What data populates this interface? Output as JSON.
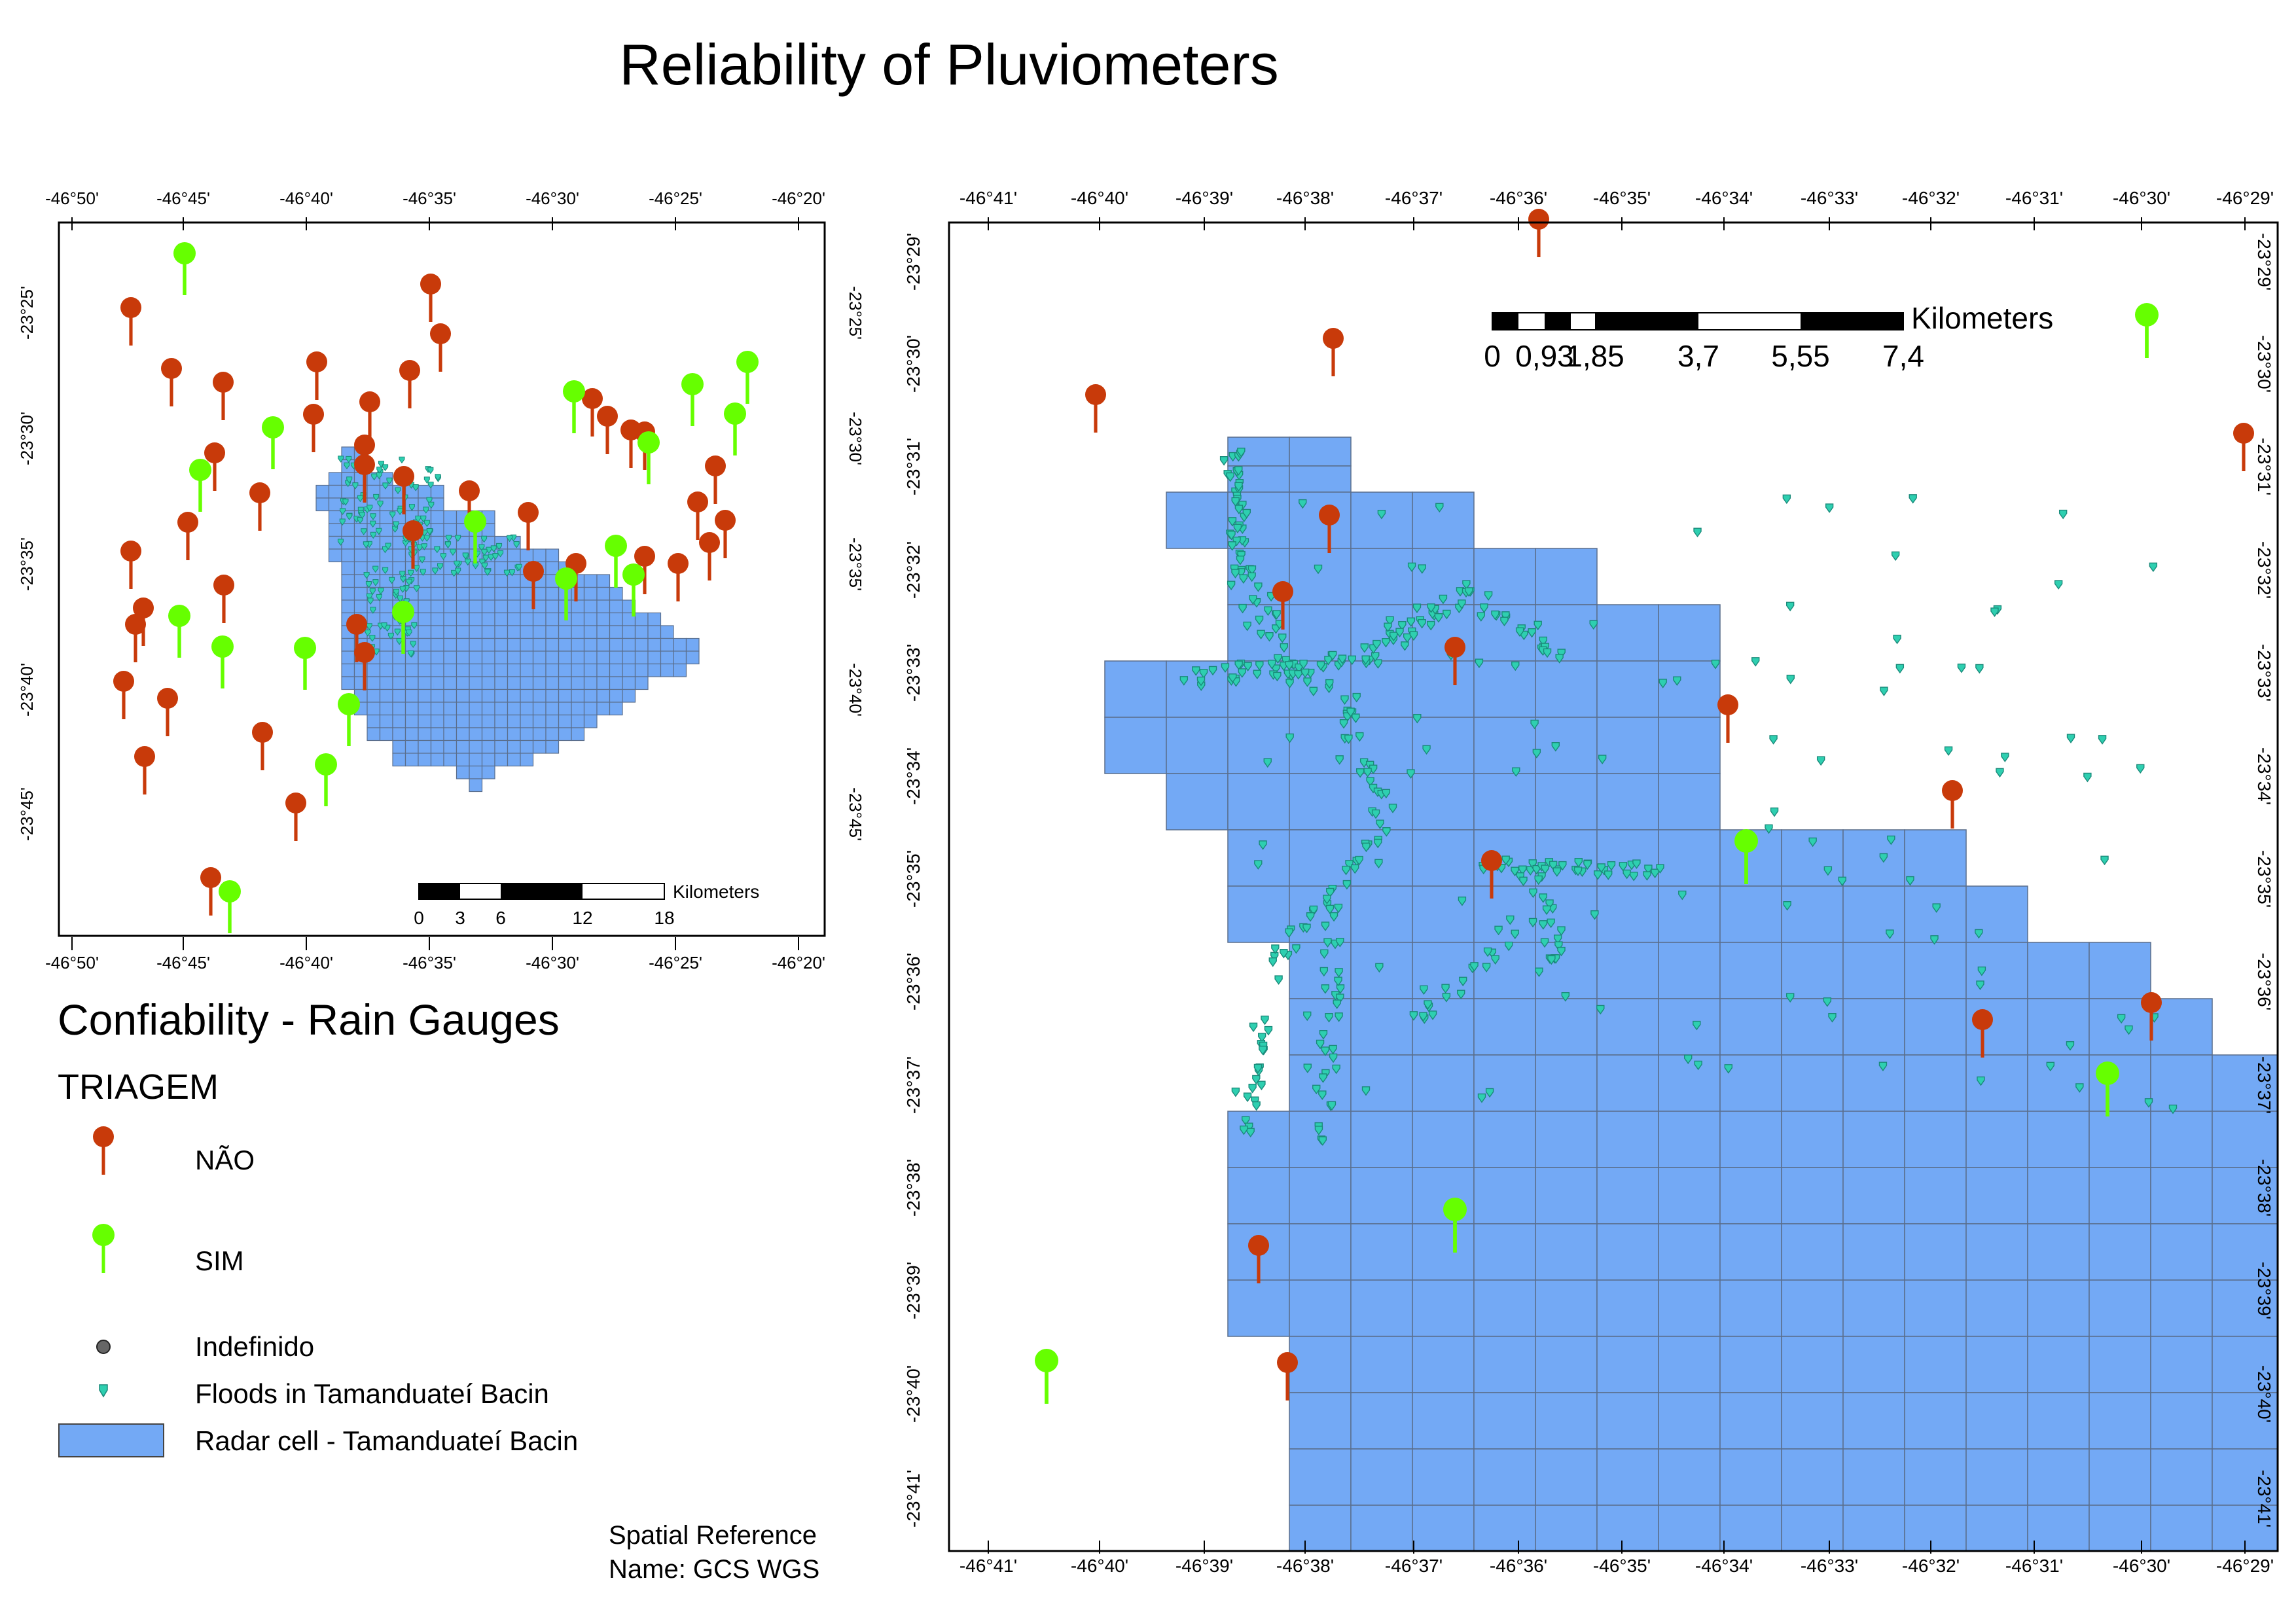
{
  "title": "Reliability of Pluviometers",
  "legend": {
    "title": "Confiability - Rain Gauges",
    "subtitle": "TRIAGEM",
    "items": [
      {
        "label": "NÃO",
        "icon": "red-pin-icon",
        "color": "#c83a0a"
      },
      {
        "label": "SIM",
        "icon": "green-pin-icon",
        "color": "#66ff00"
      },
      {
        "label": "Indefinido",
        "icon": "gray-dot-icon",
        "color": "#666666"
      },
      {
        "label": "Floods in Tamanduateí Bacin",
        "icon": "flood-marker-icon",
        "color": "#2ecfb0"
      },
      {
        "label": "Radar cell - Tamanduateí Bacin",
        "icon": "radar-cell-swatch-icon",
        "color": "#73a9f5"
      }
    ]
  },
  "spatial_reference": {
    "line1": "Spatial Reference",
    "line2": "Name: GCS WGS"
  },
  "overview_map": {
    "x_ticks": [
      "-46°50'",
      "-46°45'",
      "-46°40'",
      "-46°35'",
      "-46°30'",
      "-46°25'",
      "-46°20'"
    ],
    "y_ticks": [
      "-23°25'",
      "-23°30'",
      "-23°35'",
      "-23°40'",
      "-23°45'"
    ],
    "scalebar": {
      "unit": "Kilometers",
      "labels": [
        "0",
        "3",
        "6",
        "12",
        "18"
      ]
    }
  },
  "detail_map": {
    "x_ticks": [
      "-46°41'",
      "-46°40'",
      "-46°39'",
      "-46°38'",
      "-46°37'",
      "-46°36'",
      "-46°35'",
      "-46°34'",
      "-46°33'",
      "-46°32'",
      "-46°31'",
      "-46°30'",
      "-46°29'"
    ],
    "y_ticks": [
      "-23°29'",
      "-23°30'",
      "-23°31'",
      "-23°32'",
      "-23°33'",
      "-23°34'",
      "-23°35'",
      "-23°36'",
      "-23°37'",
      "-23°38'",
      "-23°39'",
      "-23°40'",
      "-23°41'"
    ],
    "scalebar": {
      "unit": "Kilometers",
      "labels": [
        "0",
        "0,93",
        "1,85",
        "3,7",
        "5,55",
        "7,4"
      ]
    }
  },
  "colors": {
    "nao": "#c83a0a",
    "sim": "#66ff00",
    "flood": "#2ecfb0",
    "cell": "#73a9f5",
    "cell_border": "#5a6e8c"
  }
}
